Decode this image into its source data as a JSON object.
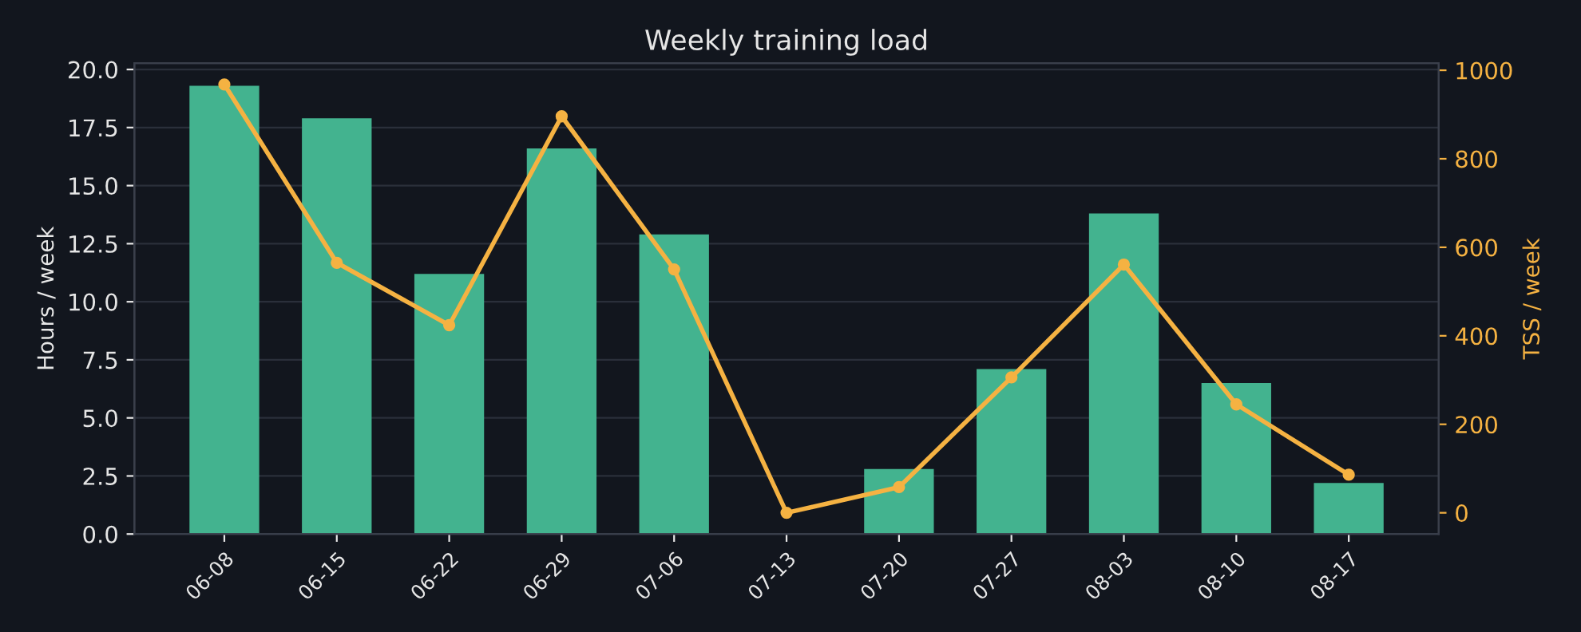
{
  "chart_data": {
    "type": "bar",
    "title": "Weekly training load",
    "ylabel": "Hours / week",
    "y2label": "TSS / week",
    "categories": [
      "06-08",
      "06-15",
      "06-22",
      "06-29",
      "07-06",
      "07-13",
      "07-20",
      "07-27",
      "08-03",
      "08-10",
      "08-17"
    ],
    "series": [
      {
        "color": "#43b38f",
        "values": [
          19.3,
          17.9,
          11.2,
          16.6,
          12.9,
          0,
          2.8,
          7.1,
          13.8,
          6.5,
          2.2
        ]
      },
      {
        "type": "line",
        "axis": "y2",
        "color": "#f5b242",
        "marker": "circle",
        "values": [
          968,
          565,
          424,
          896,
          550,
          0,
          58,
          306,
          561,
          245,
          86
        ]
      }
    ],
    "ylim": [
      0,
      20.27
    ],
    "yticks": [
      {
        "value": 0,
        "label": "0.0"
      },
      {
        "value": 2.5,
        "label": "2.5"
      },
      {
        "value": 5,
        "label": "5.0"
      },
      {
        "value": 7.5,
        "label": "7.5"
      },
      {
        "value": 10,
        "label": "10.0"
      },
      {
        "value": 12.5,
        "label": "12.5"
      },
      {
        "value": 15,
        "label": "15.0"
      },
      {
        "value": 17.5,
        "label": "17.5"
      },
      {
        "value": 20,
        "label": "20.0"
      }
    ],
    "y2lim": [
      -48,
      1016
    ],
    "y2ticks": [
      0,
      200,
      400,
      600,
      800,
      1000
    ],
    "grid": "y",
    "legend": false
  }
}
